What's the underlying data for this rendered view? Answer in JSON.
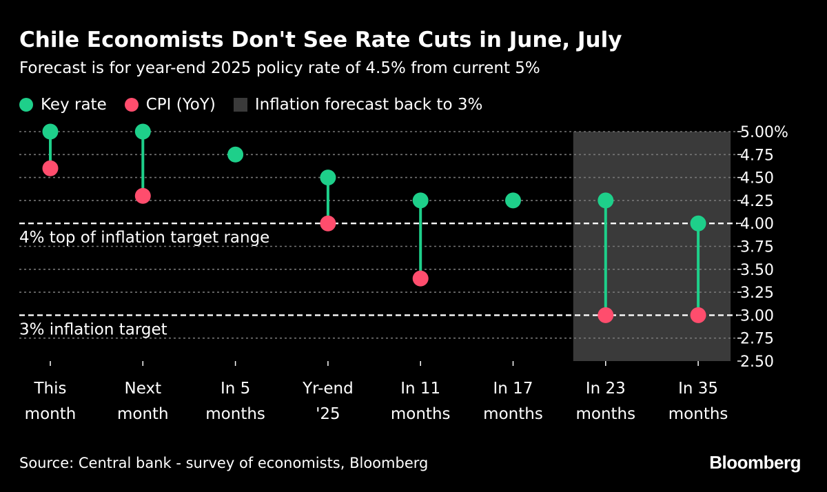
{
  "header": {
    "title": "Chile Economists Don't See Rate Cuts in June, July",
    "subtitle": "Forecast is for year-end 2025 policy rate of 4.5% from current 5%"
  },
  "footer": {
    "source": "Source: Central bank - survey of economists, Bloomberg",
    "brand": "Bloomberg"
  },
  "colors": {
    "key_rate": "#1ecf8a",
    "cpi": "#ff4d6d",
    "shade": "#3a3a3a",
    "grid": "#777777"
  },
  "chart_data": {
    "type": "scatter",
    "title": "Chile Economists Don't See Rate Cuts in June, July",
    "subtitle": "Forecast is for year-end 2025 policy rate of 4.5% from current 5%",
    "categories": [
      [
        "This",
        "month"
      ],
      [
        "Next",
        "month"
      ],
      [
        "In 5",
        "months"
      ],
      [
        "Yr-end",
        "'25"
      ],
      [
        "In 11",
        "months"
      ],
      [
        "In 17",
        "months"
      ],
      [
        "In 23",
        "months"
      ],
      [
        "In 35",
        "months"
      ]
    ],
    "series": [
      {
        "name": "Key rate",
        "values": [
          5.0,
          5.0,
          4.75,
          4.5,
          4.25,
          4.25,
          4.25,
          4.0
        ]
      },
      {
        "name": "CPI (YoY)",
        "values": [
          4.6,
          4.3,
          null,
          4.0,
          3.4,
          null,
          3.0,
          3.0
        ]
      }
    ],
    "legend": {
      "position": "top-left",
      "entries": [
        "Key rate",
        "CPI (YoY)",
        "Inflation forecast back to 3%"
      ]
    },
    "shaded_region": {
      "label": "Inflation forecast back to 3%",
      "from_index": 6,
      "to_index": 7
    },
    "ylim": [
      2.5,
      5.0
    ],
    "yticks": [
      5.0,
      4.75,
      4.5,
      4.25,
      4.0,
      3.75,
      3.5,
      3.25,
      3.0,
      2.75,
      2.5
    ],
    "ytick_labels": [
      "5.00%",
      "4.75",
      "4.50",
      "4.25",
      "4.00",
      "3.75",
      "3.50",
      "3.25",
      "3.00",
      "2.75",
      "2.50"
    ],
    "y_axis_side": "right",
    "grid": true,
    "reference_lines": [
      {
        "value": 4.0,
        "label": "4% top of inflation target range"
      },
      {
        "value": 3.0,
        "label": "3% inflation target"
      }
    ]
  }
}
